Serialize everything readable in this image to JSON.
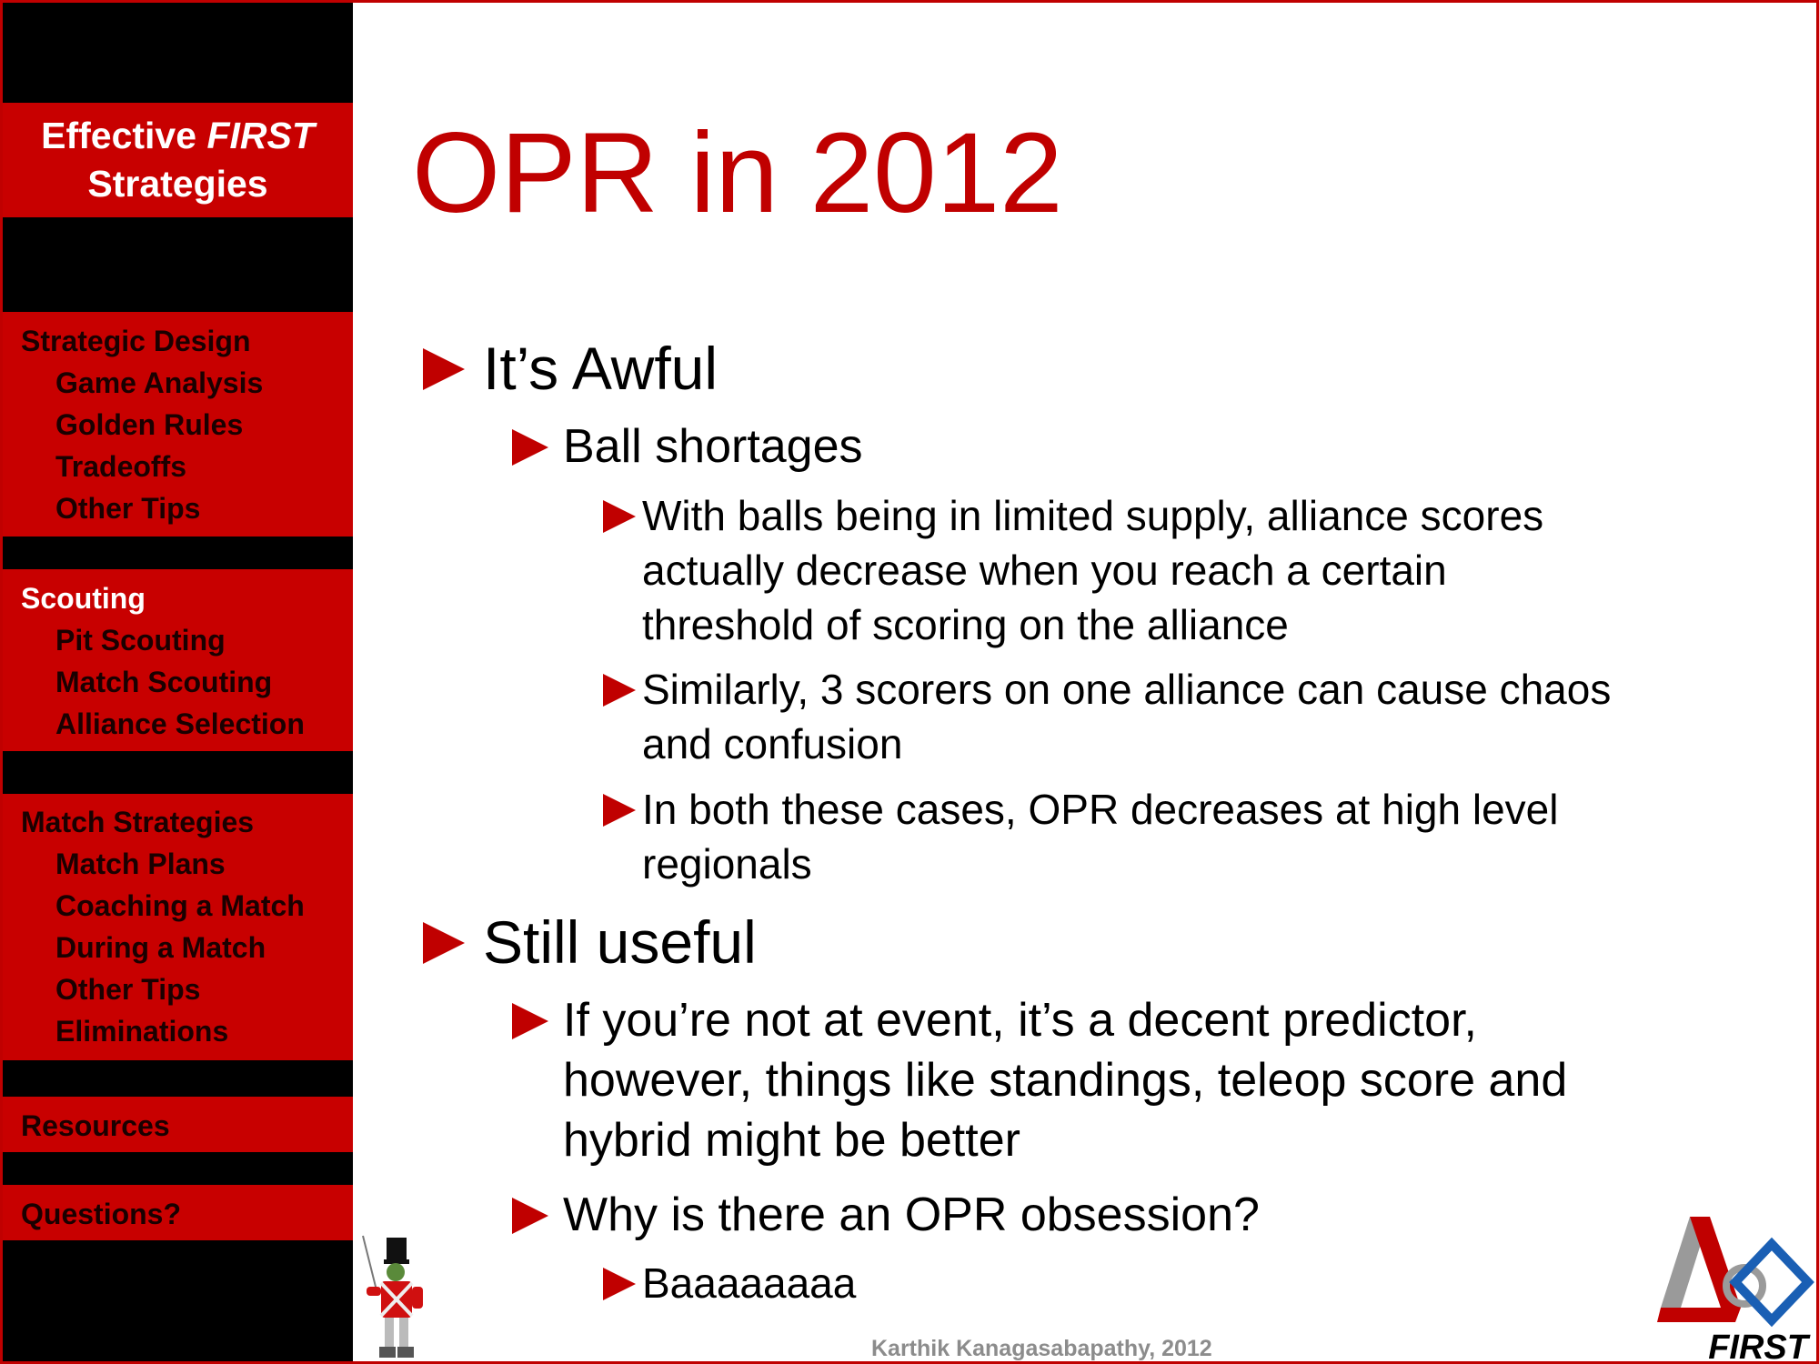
{
  "sidebar": {
    "brand_line1": "Effective",
    "brand_line1_italic": "FIRST",
    "brand_line2": "Strategies",
    "sections": [
      {
        "heading": "Strategic Design",
        "items": [
          "Game Analysis",
          "Golden Rules",
          "Tradeoffs",
          "Other Tips"
        ]
      },
      {
        "heading": "Scouting",
        "items": [
          "Pit Scouting",
          "Match Scouting",
          "Alliance Selection"
        ]
      },
      {
        "heading": "Match Strategies",
        "items": [
          "Match Plans",
          "Coaching a Match",
          "During a Match",
          "Other Tips",
          "Eliminations"
        ]
      },
      {
        "heading": "Resources",
        "items": []
      },
      {
        "heading": "Questions?",
        "items": []
      }
    ]
  },
  "slide": {
    "title": "OPR in 2012",
    "bullets": {
      "b1": "It’s Awful",
      "b1_1": "Ball shortages",
      "b1_1_1_l1": "With balls being in limited supply, alliance scores",
      "b1_1_1_l2": "actually decrease when you reach a certain",
      "b1_1_1_l3": "threshold of scoring on the alliance",
      "b1_1_2_l1": "Similarly, 3 scorers on one alliance can cause chaos",
      "b1_1_2_l2": "and confusion",
      "b1_1_3_l1": "In both these cases, OPR decreases at high level",
      "b1_1_3_l2": "regionals",
      "b2": "Still useful",
      "b2_1_l1": "If you’re not at event, it’s a decent predictor,",
      "b2_1_l2": "however, things like standings, teleop score and",
      "b2_1_l3": "hybrid might be better",
      "b2_2": "Why is there an OPR obsession?",
      "b2_2_1": "Baaaaaaaa"
    }
  },
  "footer": {
    "credit": "Karthik Kanagasabapathy, 2012"
  },
  "logo": {
    "text": "FIRST"
  },
  "colors": {
    "accent": "#c00000",
    "sidebar_block": "#c80000",
    "sidebar_bg": "#000000"
  }
}
